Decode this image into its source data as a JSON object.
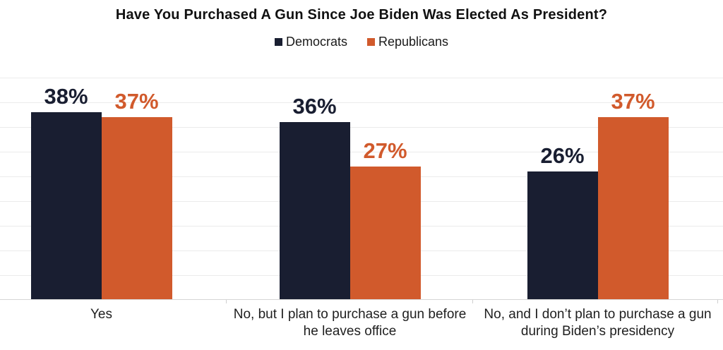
{
  "chart_data": {
    "type": "bar",
    "title": "Have You Purchased A Gun Since Joe Biden Was Elected As President?",
    "categories": [
      "Yes",
      "No, but I plan to purchase a gun before he leaves office",
      "No, and I don’t plan to purchase a gun during Biden’s presidency"
    ],
    "series": [
      {
        "name": "Democrats",
        "color": "#191e31",
        "values": [
          38,
          36,
          26
        ],
        "data_labels": [
          "38%",
          "36%",
          "26%"
        ]
      },
      {
        "name": "Republicans",
        "color": "#d15a2c",
        "values": [
          37,
          27,
          37
        ],
        "data_labels": [
          "37%",
          "27%",
          "37%"
        ]
      }
    ],
    "value_suffix": "%",
    "xlabel": "",
    "ylabel": "",
    "ylim": [
      0,
      45
    ],
    "gridline_step": 5,
    "grid": true,
    "legend_position": "top",
    "y_axis_labels_visible": false
  },
  "colors": {
    "background": "#ffffff",
    "gridline": "#ebebeb",
    "baseline": "#d6d6d6",
    "tick": "#cfcfcf",
    "title_text": "#111111",
    "category_text": "#1f1f1f",
    "legend_text": "#1a1a1a"
  }
}
